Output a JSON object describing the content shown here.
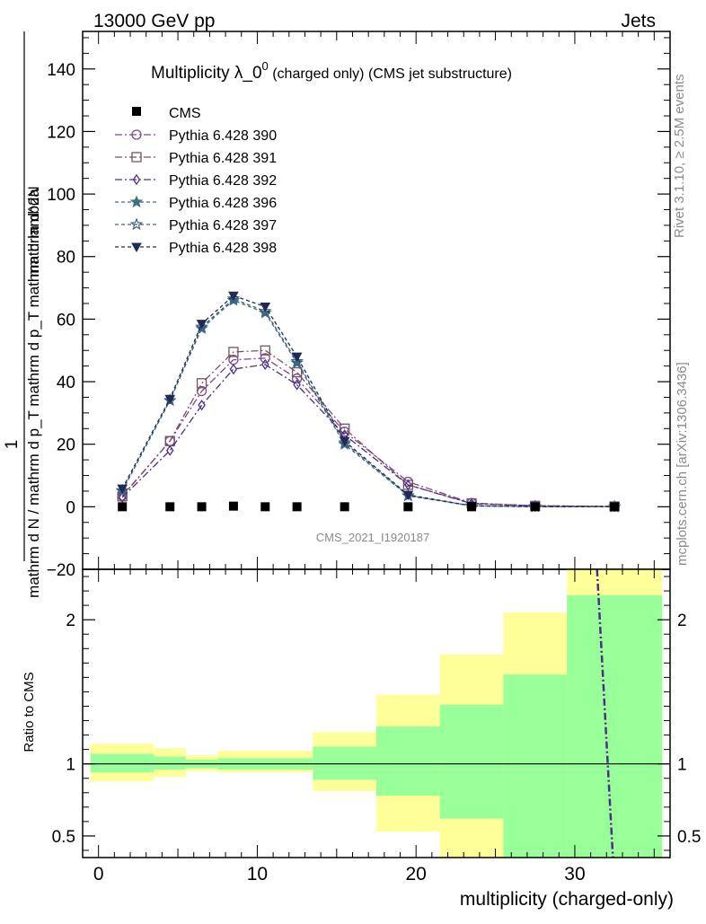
{
  "header": {
    "left": "13000 GeV pp",
    "right": "Jets"
  },
  "side": {
    "rivet": "Rivet 3.1.10, ≥ 2.5M events",
    "mcplots": "mcplots.cern.ch [arXiv:1306.3436]"
  },
  "chart_data": {
    "type": "line",
    "title_main": "Multiplicity λ_0",
    "title_sup": "0",
    "title_sub": " (charged only) (CMS jet substructure)",
    "watermark": "CMS_2021_I1920187",
    "xlabel": "multiplicity (charged-only)",
    "ylabel_upper_num": "1",
    "ylabel_upper_den": "mathrm d N / mathrm d p_T mathrm d p_T mathrm d lambda",
    "ylabel_upper_num2": "mathrm d^2N",
    "ylabel_lower": "Ratio to CMS",
    "xlim": [
      -1,
      36
    ],
    "upper_ylim": [
      -20,
      152
    ],
    "lower_ylim": [
      0.35,
      2.35
    ],
    "x_ticks": [
      0,
      10,
      20,
      30
    ],
    "x_tick_labels": [
      "0",
      "10",
      "20",
      "30"
    ],
    "upper_y_ticks": [
      -20,
      0,
      20,
      40,
      60,
      80,
      100,
      120,
      140
    ],
    "upper_y_tick_labels": [
      "−20",
      "0",
      "20",
      "40",
      "60",
      "80",
      "100",
      "120",
      "140"
    ],
    "lower_y_ticks": [
      0.5,
      1,
      2
    ],
    "lower_y_tick_labels": [
      "0.5",
      "1",
      "2"
    ],
    "x": [
      1.5,
      4.5,
      6.5,
      8.5,
      10.5,
      12.5,
      15.5,
      19.5,
      23.5,
      27.5,
      32.5
    ],
    "data": {
      "name": "CMS",
      "values": [
        0,
        0,
        0,
        0.2,
        0,
        0,
        0,
        0,
        0,
        0,
        0
      ]
    },
    "series": [
      {
        "name": "Pythia 6.428 390",
        "color": "#7a4a8f",
        "marker": "circle-open",
        "dash": "8,3,2,3",
        "values": [
          3.5,
          21,
          37,
          47,
          47.5,
          41,
          24,
          8,
          1.2,
          0.3,
          0.1
        ]
      },
      {
        "name": "Pythia 6.428 391",
        "color": "#7b5060",
        "marker": "square-open",
        "dash": "8,3,2,3",
        "values": [
          3.3,
          21,
          39.5,
          49.5,
          50,
          43,
          25,
          7,
          1.1,
          0.3,
          0.1
        ]
      },
      {
        "name": "Pythia 6.428 392",
        "color": "#4e2e8c",
        "marker": "diamond-open",
        "dash": "8,3,2,3",
        "values": [
          3,
          18,
          32.5,
          44,
          45.5,
          39,
          23,
          7,
          1,
          0.3,
          0.1
        ]
      },
      {
        "name": "Pythia 6.428 396",
        "color": "#3f6f85",
        "marker": "star-filled",
        "dash": "4,3",
        "values": [
          5,
          34,
          57,
          66,
          62,
          46,
          20,
          3.5,
          0.3,
          0.05,
          0.02
        ]
      },
      {
        "name": "Pythia 6.428 397",
        "color": "#3f6080",
        "marker": "star-open",
        "dash": "4,3",
        "values": [
          5.2,
          34,
          57.5,
          66.5,
          62.5,
          46.5,
          20.5,
          3.6,
          0.3,
          0.05,
          0.02
        ]
      },
      {
        "name": "Pythia 6.428 398",
        "color": "#1f2a55",
        "marker": "triangle-down-filled",
        "dash": "4,3",
        "values": [
          5.8,
          34.5,
          58.5,
          67.5,
          64,
          48,
          21,
          3.8,
          0.3,
          0.05,
          0.02
        ]
      }
    ],
    "ratio_bands": [
      {
        "x0": -0.5,
        "x1": 3.5,
        "y_lo": 0.88,
        "y_hi": 1.14,
        "g_lo": 0.94,
        "g_hi": 1.07
      },
      {
        "x0": 3.5,
        "x1": 5.5,
        "y_lo": 0.91,
        "y_hi": 1.11,
        "g_lo": 0.96,
        "g_hi": 1.05
      },
      {
        "x0": 5.5,
        "x1": 7.5,
        "y_lo": 0.95,
        "y_hi": 1.06,
        "g_lo": 0.97,
        "g_hi": 1.03
      },
      {
        "x0": 7.5,
        "x1": 13.5,
        "y_lo": 0.94,
        "y_hi": 1.09,
        "g_lo": 0.96,
        "g_hi": 1.04
      },
      {
        "x0": 13.5,
        "x1": 17.5,
        "y_lo": 0.81,
        "y_hi": 1.22,
        "g_lo": 0.89,
        "g_hi": 1.12
      },
      {
        "x0": 17.5,
        "x1": 21.5,
        "y_lo": 0.53,
        "y_hi": 1.48,
        "g_lo": 0.78,
        "g_hi": 1.26
      },
      {
        "x0": 21.5,
        "x1": 25.5,
        "y_lo": 0.35,
        "y_hi": 1.76,
        "g_lo": 0.62,
        "g_hi": 1.41
      },
      {
        "x0": 25.5,
        "x1": 29.5,
        "y_lo": 0.35,
        "y_hi": 2.05,
        "g_lo": 0.35,
        "g_hi": 1.62
      },
      {
        "x0": 29.5,
        "x1": 35.5,
        "y_lo": 0.35,
        "y_hi": 2.35,
        "g_lo": 0.35,
        "g_hi": 2.17
      }
    ],
    "ratio_line": {
      "color": "#4e2e8c",
      "x": [
        31.4,
        32.4
      ],
      "y": [
        2.35,
        0.35
      ]
    }
  }
}
